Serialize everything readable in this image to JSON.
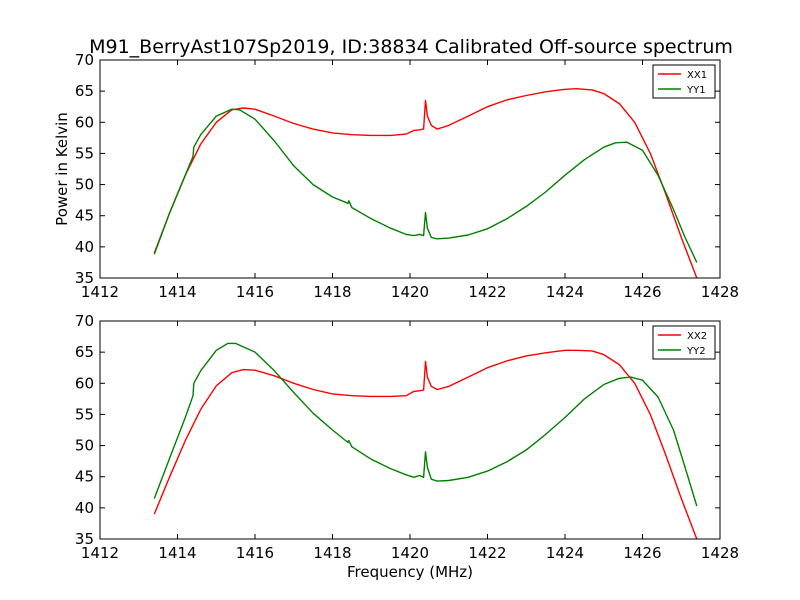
{
  "figure_title": "M91_BerryAst107Sp2019, ID:38834 Calibrated Off-source spectrum",
  "chart_data": [
    {
      "type": "line",
      "title": "M91_BerryAst107Sp2019, ID:38834 Calibrated Off-source spectrum",
      "xlabel": "",
      "ylabel": "Power in Kelvin",
      "xlim": [
        1412,
        1428
      ],
      "ylim": [
        35,
        70
      ],
      "xticks": [
        1412,
        1414,
        1416,
        1418,
        1420,
        1422,
        1424,
        1426,
        1428
      ],
      "yticks": [
        35,
        40,
        45,
        50,
        55,
        60,
        65,
        70
      ],
      "xtick_labels": [
        "1412",
        "1414",
        "1416",
        "1418",
        "1420",
        "1422",
        "1424",
        "1426",
        "1428"
      ],
      "ytick_labels": [
        "35",
        "40",
        "45",
        "50",
        "55",
        "60",
        "65",
        "70"
      ],
      "grid": false,
      "legend_position": "top-right",
      "series": [
        {
          "name": "XX1",
          "color": "#ff0000",
          "x": [
            1413.4,
            1413.8,
            1414.2,
            1414.6,
            1415.0,
            1415.4,
            1415.7,
            1416.0,
            1416.5,
            1417.0,
            1417.5,
            1418.0,
            1418.5,
            1419.0,
            1419.5,
            1419.9,
            1420.1,
            1420.25,
            1420.35,
            1420.4,
            1420.45,
            1420.55,
            1420.7,
            1421.0,
            1421.5,
            1422.0,
            1422.5,
            1423.0,
            1423.5,
            1424.0,
            1424.3,
            1424.7,
            1425.0,
            1425.4,
            1425.8,
            1426.2,
            1426.6,
            1427.0,
            1427.4
          ],
          "y": [
            39.0,
            45.5,
            51.5,
            56.5,
            60.0,
            62.0,
            62.3,
            62.1,
            61.0,
            59.8,
            58.9,
            58.3,
            58.0,
            57.9,
            57.9,
            58.1,
            58.7,
            58.8,
            58.9,
            63.5,
            61.0,
            59.5,
            58.9,
            59.5,
            61.0,
            62.5,
            63.6,
            64.3,
            64.9,
            65.3,
            65.4,
            65.2,
            64.6,
            63.0,
            60.0,
            55.0,
            48.5,
            41.5,
            35.0
          ]
        },
        {
          "name": "YY1",
          "color": "#008000",
          "x": [
            1413.4,
            1413.8,
            1414.2,
            1414.4,
            1414.42,
            1414.6,
            1415.0,
            1415.4,
            1415.6,
            1416.0,
            1416.5,
            1417.0,
            1417.5,
            1418.0,
            1418.4,
            1418.42,
            1418.5,
            1419.0,
            1419.5,
            1419.9,
            1420.1,
            1420.25,
            1420.35,
            1420.4,
            1420.45,
            1420.55,
            1420.7,
            1421.0,
            1421.5,
            1422.0,
            1422.5,
            1423.0,
            1423.5,
            1424.0,
            1424.5,
            1425.0,
            1425.3,
            1425.6,
            1426.0,
            1426.4,
            1426.8,
            1427.1,
            1427.4
          ],
          "y": [
            38.8,
            45.5,
            51.5,
            54.5,
            56.0,
            58.0,
            61.0,
            62.1,
            62.0,
            60.5,
            57.0,
            53.0,
            50.0,
            48.0,
            47.0,
            47.4,
            46.3,
            44.5,
            43.0,
            42.0,
            41.8,
            42.0,
            41.8,
            45.5,
            43.0,
            41.5,
            41.3,
            41.4,
            41.9,
            42.9,
            44.5,
            46.5,
            48.8,
            51.5,
            54.0,
            56.0,
            56.7,
            56.8,
            55.5,
            51.5,
            46.0,
            41.5,
            37.5
          ]
        }
      ]
    },
    {
      "type": "line",
      "title": "",
      "xlabel": "Frequency (MHz)",
      "ylabel": "",
      "xlim": [
        1412,
        1428
      ],
      "ylim": [
        35,
        70
      ],
      "xticks": [
        1412,
        1414,
        1416,
        1418,
        1420,
        1422,
        1424,
        1426,
        1428
      ],
      "yticks": [
        35,
        40,
        45,
        50,
        55,
        60,
        65,
        70
      ],
      "xtick_labels": [
        "1412",
        "1414",
        "1416",
        "1418",
        "1420",
        "1422",
        "1424",
        "1426",
        "1428"
      ],
      "ytick_labels": [
        "35",
        "40",
        "45",
        "50",
        "55",
        "60",
        "65",
        "70"
      ],
      "grid": false,
      "legend_position": "top-right",
      "series": [
        {
          "name": "XX2",
          "color": "#ff0000",
          "x": [
            1413.4,
            1413.8,
            1414.2,
            1414.6,
            1415.0,
            1415.4,
            1415.7,
            1416.0,
            1416.5,
            1417.0,
            1417.5,
            1418.0,
            1418.5,
            1419.0,
            1419.5,
            1419.9,
            1420.1,
            1420.25,
            1420.35,
            1420.4,
            1420.45,
            1420.55,
            1420.7,
            1421.0,
            1421.5,
            1422.0,
            1422.5,
            1423.0,
            1423.5,
            1424.0,
            1424.3,
            1424.7,
            1425.0,
            1425.4,
            1425.8,
            1426.2,
            1426.6,
            1427.0,
            1427.4
          ],
          "y": [
            39.0,
            45.0,
            50.8,
            55.8,
            59.6,
            61.7,
            62.2,
            62.1,
            61.2,
            60.0,
            59.0,
            58.3,
            58.0,
            57.9,
            57.9,
            58.0,
            58.7,
            58.8,
            58.9,
            63.5,
            61.0,
            59.5,
            59.0,
            59.5,
            61.0,
            62.5,
            63.6,
            64.4,
            64.9,
            65.3,
            65.3,
            65.2,
            64.6,
            63.0,
            60.0,
            55.0,
            48.5,
            41.5,
            35.0
          ]
        },
        {
          "name": "YY2",
          "color": "#008000",
          "x": [
            1413.4,
            1413.8,
            1414.2,
            1414.4,
            1414.42,
            1414.6,
            1415.0,
            1415.3,
            1415.5,
            1416.0,
            1416.5,
            1417.0,
            1417.5,
            1418.0,
            1418.4,
            1418.42,
            1418.5,
            1419.0,
            1419.5,
            1419.9,
            1420.1,
            1420.25,
            1420.35,
            1420.4,
            1420.45,
            1420.55,
            1420.7,
            1421.0,
            1421.5,
            1422.0,
            1422.5,
            1423.0,
            1423.5,
            1424.0,
            1424.5,
            1425.0,
            1425.4,
            1425.7,
            1426.0,
            1426.4,
            1426.8,
            1427.1,
            1427.4
          ],
          "y": [
            41.5,
            48.0,
            54.5,
            58.0,
            60.0,
            62.0,
            65.3,
            66.4,
            66.4,
            65.0,
            62.0,
            58.5,
            55.2,
            52.5,
            50.5,
            50.8,
            49.8,
            47.8,
            46.3,
            45.3,
            44.9,
            45.2,
            44.9,
            49.0,
            46.5,
            44.6,
            44.3,
            44.4,
            44.9,
            45.9,
            47.4,
            49.3,
            51.8,
            54.5,
            57.5,
            59.8,
            60.8,
            61.0,
            60.5,
            57.8,
            52.5,
            46.5,
            40.3
          ]
        }
      ]
    }
  ]
}
